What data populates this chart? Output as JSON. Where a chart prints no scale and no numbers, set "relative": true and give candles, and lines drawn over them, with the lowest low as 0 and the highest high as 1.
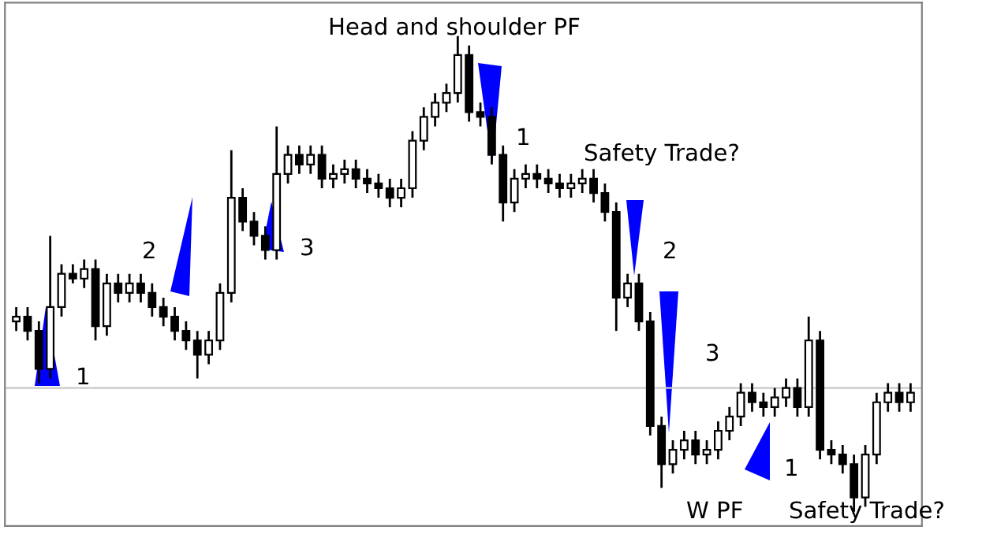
{
  "chart_data": {
    "type": "candlestick",
    "relative": true,
    "color": "#000000",
    "categories": [
      null,
      null,
      null,
      null,
      null,
      null,
      null,
      null,
      null,
      null,
      null,
      null,
      null,
      null,
      null,
      null,
      null,
      null,
      null,
      null,
      null,
      null,
      null,
      null,
      null,
      null,
      null,
      null,
      null,
      null,
      null,
      null,
      null,
      null,
      null,
      null,
      null,
      null,
      null,
      null,
      null,
      null,
      null,
      null,
      null,
      null,
      null,
      null,
      null,
      null,
      null,
      null,
      null,
      null,
      null,
      null,
      null,
      null,
      null,
      null,
      null,
      null,
      null,
      null,
      null,
      null,
      null,
      null,
      null,
      null,
      null,
      null,
      null,
      null,
      null,
      null,
      null,
      null,
      null,
      null
    ],
    "ohlc": [
      [
        0.4,
        0.43,
        0.38,
        0.41
      ],
      [
        0.41,
        0.43,
        0.36,
        0.38
      ],
      [
        0.38,
        0.4,
        0.27,
        0.3
      ],
      [
        0.3,
        0.58,
        0.28,
        0.43
      ],
      [
        0.43,
        0.52,
        0.41,
        0.5
      ],
      [
        0.5,
        0.52,
        0.48,
        0.49
      ],
      [
        0.49,
        0.53,
        0.47,
        0.51
      ],
      [
        0.51,
        0.53,
        0.36,
        0.39
      ],
      [
        0.39,
        0.5,
        0.37,
        0.48
      ],
      [
        0.48,
        0.5,
        0.44,
        0.46
      ],
      [
        0.46,
        0.5,
        0.44,
        0.48
      ],
      [
        0.48,
        0.5,
        0.44,
        0.46
      ],
      [
        0.46,
        0.48,
        0.41,
        0.43
      ],
      [
        0.43,
        0.45,
        0.39,
        0.41
      ],
      [
        0.41,
        0.43,
        0.36,
        0.38
      ],
      [
        0.38,
        0.4,
        0.34,
        0.36
      ],
      [
        0.36,
        0.38,
        0.28,
        0.33
      ],
      [
        0.33,
        0.38,
        0.31,
        0.36
      ],
      [
        0.36,
        0.48,
        0.34,
        0.46
      ],
      [
        0.46,
        0.76,
        0.44,
        0.66
      ],
      [
        0.66,
        0.68,
        0.59,
        0.61
      ],
      [
        0.61,
        0.63,
        0.56,
        0.58
      ],
      [
        0.58,
        0.6,
        0.53,
        0.55
      ],
      [
        0.55,
        0.81,
        0.53,
        0.71
      ],
      [
        0.71,
        0.77,
        0.69,
        0.75
      ],
      [
        0.75,
        0.77,
        0.71,
        0.73
      ],
      [
        0.73,
        0.77,
        0.71,
        0.75
      ],
      [
        0.75,
        0.77,
        0.68,
        0.7
      ],
      [
        0.7,
        0.73,
        0.68,
        0.71
      ],
      [
        0.71,
        0.74,
        0.69,
        0.72
      ],
      [
        0.72,
        0.74,
        0.68,
        0.7
      ],
      [
        0.7,
        0.72,
        0.67,
        0.69
      ],
      [
        0.69,
        0.71,
        0.66,
        0.68
      ],
      [
        0.68,
        0.7,
        0.64,
        0.66
      ],
      [
        0.66,
        0.7,
        0.64,
        0.68
      ],
      [
        0.68,
        0.8,
        0.66,
        0.78
      ],
      [
        0.78,
        0.85,
        0.76,
        0.83
      ],
      [
        0.83,
        0.88,
        0.81,
        0.86
      ],
      [
        0.86,
        0.9,
        0.84,
        0.88
      ],
      [
        0.88,
        1.0,
        0.86,
        0.96
      ],
      [
        0.96,
        0.98,
        0.82,
        0.84
      ],
      [
        0.84,
        0.86,
        0.81,
        0.83
      ],
      [
        0.83,
        0.85,
        0.73,
        0.75
      ],
      [
        0.75,
        0.77,
        0.61,
        0.65
      ],
      [
        0.65,
        0.72,
        0.63,
        0.7
      ],
      [
        0.7,
        0.73,
        0.68,
        0.71
      ],
      [
        0.71,
        0.73,
        0.68,
        0.7
      ],
      [
        0.7,
        0.72,
        0.67,
        0.69
      ],
      [
        0.69,
        0.71,
        0.66,
        0.68
      ],
      [
        0.68,
        0.71,
        0.66,
        0.69
      ],
      [
        0.69,
        0.72,
        0.67,
        0.7
      ],
      [
        0.7,
        0.72,
        0.65,
        0.67
      ],
      [
        0.67,
        0.69,
        0.61,
        0.63
      ],
      [
        0.63,
        0.65,
        0.38,
        0.45
      ],
      [
        0.45,
        0.5,
        0.43,
        0.48
      ],
      [
        0.48,
        0.5,
        0.38,
        0.4
      ],
      [
        0.4,
        0.42,
        0.16,
        0.18
      ],
      [
        0.18,
        0.2,
        0.05,
        0.1
      ],
      [
        0.1,
        0.15,
        0.08,
        0.13
      ],
      [
        0.13,
        0.17,
        0.11,
        0.15
      ],
      [
        0.15,
        0.17,
        0.1,
        0.12
      ],
      [
        0.12,
        0.15,
        0.1,
        0.13
      ],
      [
        0.13,
        0.19,
        0.11,
        0.17
      ],
      [
        0.17,
        0.22,
        0.15,
        0.2
      ],
      [
        0.2,
        0.27,
        0.18,
        0.25
      ],
      [
        0.25,
        0.27,
        0.21,
        0.23
      ],
      [
        0.23,
        0.25,
        0.2,
        0.22
      ],
      [
        0.22,
        0.26,
        0.2,
        0.24
      ],
      [
        0.24,
        0.28,
        0.22,
        0.26
      ],
      [
        0.26,
        0.28,
        0.2,
        0.22
      ],
      [
        0.22,
        0.41,
        0.2,
        0.36
      ],
      [
        0.36,
        0.38,
        0.11,
        0.13
      ],
      [
        0.13,
        0.15,
        0.1,
        0.12
      ],
      [
        0.12,
        0.14,
        0.08,
        0.1
      ],
      [
        0.1,
        0.12,
        0.0,
        0.03
      ],
      [
        0.03,
        0.14,
        0.01,
        0.12
      ],
      [
        0.12,
        0.25,
        0.1,
        0.23
      ],
      [
        0.23,
        0.27,
        0.21,
        0.25
      ],
      [
        0.25,
        0.27,
        0.21,
        0.23
      ],
      [
        0.23,
        0.27,
        0.21,
        0.25
      ]
    ],
    "ref_lines": [
      {
        "axis": "y",
        "value": 0.26,
        "color": "#c8c8c8"
      }
    ],
    "annotations": [
      "Head and shoulder PF",
      "1",
      "2",
      "3",
      "1",
      "Safety Trade?",
      "2",
      "3",
      "W PF",
      "1",
      "Safety Trade?"
    ]
  }
}
